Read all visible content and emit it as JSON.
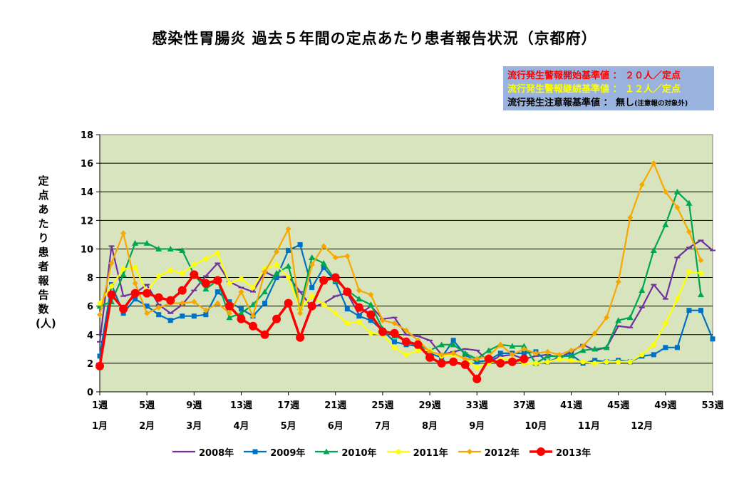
{
  "chart_data": {
    "type": "line",
    "title": "感染性胃腸炎 過去５年間の定点あたり患者報告状況（京都府）",
    "ylabel": "定点あたり患者報告数(人)",
    "ylim": [
      0,
      18
    ],
    "yticks": [
      0,
      2,
      4,
      6,
      8,
      10,
      12,
      14,
      16,
      18
    ],
    "xlim": [
      1,
      53
    ],
    "week_ticks": [
      {
        "week": 1,
        "label": "1週"
      },
      {
        "week": 5,
        "label": "5週"
      },
      {
        "week": 9,
        "label": "9週"
      },
      {
        "week": 13,
        "label": "13週"
      },
      {
        "week": 17,
        "label": "17週"
      },
      {
        "week": 21,
        "label": "21週"
      },
      {
        "week": 25,
        "label": "25週"
      },
      {
        "week": 29,
        "label": "29週"
      },
      {
        "week": 33,
        "label": "33週"
      },
      {
        "week": 37,
        "label": "37週"
      },
      {
        "week": 41,
        "label": "41週"
      },
      {
        "week": 45,
        "label": "45週"
      },
      {
        "week": 49,
        "label": "49週"
      },
      {
        "week": 53,
        "label": "53週"
      }
    ],
    "month_labels": [
      {
        "week": 1,
        "label": "1月"
      },
      {
        "week": 5,
        "label": "2月"
      },
      {
        "week": 9,
        "label": "3月"
      },
      {
        "week": 13,
        "label": "4月"
      },
      {
        "week": 17,
        "label": "5月"
      },
      {
        "week": 21,
        "label": "6月"
      },
      {
        "week": 25,
        "label": "7月"
      },
      {
        "week": 29,
        "label": "8月"
      },
      {
        "week": 33,
        "label": "9月"
      },
      {
        "week": 38,
        "label": "10月"
      },
      {
        "week": 42.5,
        "label": "11月"
      },
      {
        "week": 47,
        "label": "12月"
      }
    ],
    "grid": true,
    "plot_background": "#d7e4bd",
    "legend_position": "bottom",
    "series": [
      {
        "name": "2008年",
        "color": "#7030a0",
        "marker": "dash",
        "start_week": 1,
        "values": [
          3.5,
          10.2,
          6.7,
          6.9,
          7.5,
          6.1,
          5.5,
          6.1,
          7.1,
          8.1,
          9.0,
          7.7,
          7.3,
          7.0,
          8.4,
          8.0,
          8.1,
          7.0,
          5.9,
          6.2,
          6.7,
          6.9,
          5.4,
          6.0,
          5.1,
          5.2,
          4.0,
          3.9,
          3.6,
          2.6,
          2.8,
          3.0,
          2.9,
          2.1,
          2.5,
          2.6,
          2.3,
          2.5,
          2.6,
          2.4,
          2.8,
          3.3,
          2.9,
          3.1,
          4.6,
          4.5,
          5.9,
          7.5,
          6.5,
          9.4,
          10.1,
          10.6,
          9.9
        ]
      },
      {
        "name": "2009年",
        "color": "#0070c0",
        "marker": "square",
        "start_week": 1,
        "values": [
          2.5,
          7.5,
          5.5,
          6.5,
          6.0,
          5.4,
          5.0,
          5.3,
          5.3,
          5.4,
          7.0,
          6.3,
          5.8,
          5.3,
          6.2,
          8.0,
          9.9,
          10.3,
          7.3,
          8.7,
          7.7,
          5.8,
          5.3,
          5.0,
          4.3,
          3.5,
          3.3,
          3.2,
          2.7,
          2.4,
          3.6,
          2.6,
          2.1,
          2.2,
          2.7,
          2.7,
          2.7,
          2.8,
          2.1,
          2.4,
          2.6,
          2.0,
          2.2,
          2.1,
          2.2,
          2.1,
          2.5,
          2.6,
          3.1,
          3.1,
          5.7,
          5.7,
          3.7
        ]
      },
      {
        "name": "2010年",
        "color": "#00a651",
        "marker": "triangle",
        "start_week": 1,
        "values": [
          6.0,
          6.3,
          8.2,
          10.4,
          10.4,
          10.0,
          10.0,
          9.9,
          8.2,
          7.2,
          7.8,
          5.2,
          5.5,
          6.1,
          7.0,
          8.3,
          8.8,
          5.9,
          9.4,
          9.0,
          7.8,
          7.1,
          6.5,
          6.1,
          4.4,
          3.9,
          3.6,
          3.3,
          2.9,
          3.3,
          3.3,
          2.7,
          2.3,
          2.9,
          3.3,
          3.2,
          3.2,
          2.0,
          2.5,
          2.5,
          2.5,
          2.9,
          3.0,
          3.1,
          5.0,
          5.2,
          7.1,
          9.9,
          11.7,
          14.0,
          13.2,
          6.8
        ]
      },
      {
        "name": "2011年",
        "color": "#ffff00",
        "marker": "circle",
        "start_week": 1,
        "values": [
          6.2,
          7.4,
          8.6,
          8.7,
          7.0,
          8.1,
          8.5,
          8.3,
          8.9,
          9.3,
          9.7,
          7.6,
          7.9,
          7.3,
          8.6,
          8.9,
          8.0,
          5.8,
          6.7,
          6.1,
          5.5,
          4.8,
          4.9,
          4.1,
          4.0,
          3.1,
          2.6,
          2.9,
          2.9,
          2.5,
          2.6,
          2.3,
          1.7,
          2.0,
          2.3,
          2.3,
          2.0,
          2.0,
          2.1,
          2.3,
          2.2,
          2.1,
          2.0,
          2.1,
          2.1,
          2.1,
          2.6,
          3.3,
          4.8,
          6.5,
          8.4,
          8.3
        ]
      },
      {
        "name": "2012年",
        "color": "#f7a800",
        "marker": "diamond",
        "start_week": 1,
        "values": [
          5.4,
          9.0,
          11.1,
          7.6,
          5.5,
          5.9,
          6.2,
          6.2,
          6.3,
          5.7,
          6.2,
          5.5,
          7.0,
          5.3,
          8.4,
          9.8,
          11.4,
          5.5,
          8.9,
          10.2,
          9.4,
          9.5,
          7.1,
          6.8,
          5.0,
          4.8,
          4.3,
          3.6,
          2.8,
          2.6,
          2.7,
          2.3,
          2.3,
          2.5,
          3.3,
          2.6,
          3.0,
          2.7,
          2.8,
          2.6,
          2.9,
          3.2,
          4.1,
          5.2,
          7.7,
          12.2,
          14.5,
          16.0,
          14.0,
          12.9,
          11.2,
          9.2
        ]
      },
      {
        "name": "2013年",
        "color": "#ff0000",
        "marker": "circle-large",
        "start_week": 1,
        "values": [
          1.8,
          6.8,
          5.8,
          6.9,
          6.9,
          6.6,
          6.4,
          7.1,
          8.2,
          7.6,
          7.8,
          6.0,
          5.1,
          4.6,
          4.0,
          5.1,
          6.2,
          3.8,
          6.0,
          7.8,
          8.0,
          7.0,
          5.9,
          5.4,
          4.2,
          4.1,
          3.5,
          3.3,
          2.4,
          2.0,
          2.1,
          1.9,
          0.9,
          2.3,
          2.0,
          2.1,
          2.3
        ]
      }
    ]
  },
  "thresholds": {
    "alarm_start": "流行発生警報開始基準値 ： ２０人／定点",
    "alarm_continue": "流行発生警報継続基準値 ： １２人／定点",
    "watch_main": "流行発生注意報基準値 ： 無し",
    "watch_note": "(注意報の対象外)",
    "alarm_start_color": "#ff0000",
    "alarm_continue_color": "#ffff00",
    "watch_color": "#000000"
  }
}
